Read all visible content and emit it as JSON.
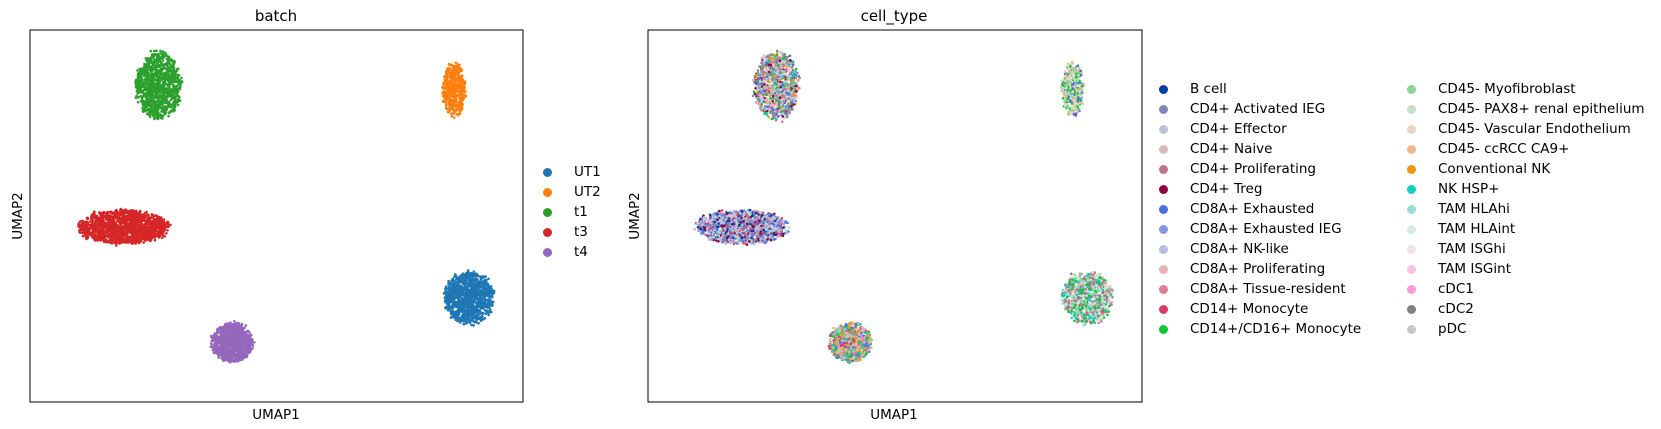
{
  "chart_data": [
    {
      "type": "scatter",
      "title": "batch",
      "xlabel": "UMAP1",
      "ylabel": "UMAP2",
      "grid": false,
      "legend_placement": "right",
      "legend": [
        {
          "label": "UT1",
          "color": "#1f77b4"
        },
        {
          "label": "UT2",
          "color": "#ff7f0e"
        },
        {
          "label": "t1",
          "color": "#2ca02c"
        },
        {
          "label": "t3",
          "color": "#d62728"
        },
        {
          "label": "t4",
          "color": "#9467bd"
        }
      ],
      "xlim": [
        0,
        10
      ],
      "ylim": [
        0,
        10
      ],
      "clusters": [
        {
          "category": "t1",
          "center": [
            2.6,
            8.5
          ],
          "spread": [
            0.9,
            1.8
          ],
          "n": 1100
        },
        {
          "category": "UT2",
          "center": [
            8.6,
            8.4
          ],
          "spread": [
            0.45,
            1.45
          ],
          "n": 450
        },
        {
          "category": "t3",
          "center": [
            1.9,
            4.7
          ],
          "spread": [
            1.8,
            0.9
          ],
          "n": 1500
        },
        {
          "category": "UT1",
          "center": [
            8.9,
            2.8
          ],
          "spread": [
            1.0,
            1.4
          ],
          "n": 1100
        },
        {
          "category": "t4",
          "center": [
            4.1,
            1.6
          ],
          "spread": [
            0.85,
            1.05
          ],
          "n": 900
        }
      ]
    },
    {
      "type": "scatter",
      "title": "cell_type",
      "xlabel": "UMAP1",
      "ylabel": "UMAP2",
      "grid": false,
      "legend_placement": "right",
      "legend": [
        {
          "label": "B cell",
          "color": "#023fa5"
        },
        {
          "label": "CD4+ Activated IEG",
          "color": "#7d87b9"
        },
        {
          "label": "CD4+ Effector",
          "color": "#bec1d4"
        },
        {
          "label": "CD4+ Naive",
          "color": "#d6bcc0"
        },
        {
          "label": "CD4+ Proliferating",
          "color": "#bb7784"
        },
        {
          "label": "CD4+ Treg",
          "color": "#8e063b"
        },
        {
          "label": "CD8A+ Exhausted",
          "color": "#4a6fe3"
        },
        {
          "label": "CD8A+ Exhausted IEG",
          "color": "#8595e1"
        },
        {
          "label": "CD8A+ NK-like",
          "color": "#b5bbe3"
        },
        {
          "label": "CD8A+ Proliferating",
          "color": "#e6afb9"
        },
        {
          "label": "CD8A+ Tissue-resident",
          "color": "#e07b91"
        },
        {
          "label": "CD14+ Monocyte",
          "color": "#d33f6a"
        },
        {
          "label": "CD14+/CD16+ Monocyte",
          "color": "#11c638"
        },
        {
          "label": "CD45- Myofibroblast",
          "color": "#8dd593"
        },
        {
          "label": "CD45- PAX8+ renal epithelium",
          "color": "#c6dec7"
        },
        {
          "label": "CD45- Vascular Endothelium",
          "color": "#ead3c6"
        },
        {
          "label": "CD45- ccRCC CA9+",
          "color": "#f0b98d"
        },
        {
          "label": "Conventional NK",
          "color": "#ef9708"
        },
        {
          "label": "NK HSP+",
          "color": "#0fcfc0"
        },
        {
          "label": "TAM HLAhi",
          "color": "#9cded6"
        },
        {
          "label": "TAM HLAint",
          "color": "#d5eae7"
        },
        {
          "label": "TAM ISGhi",
          "color": "#f3e1eb"
        },
        {
          "label": "TAM ISGint",
          "color": "#f6c4e1"
        },
        {
          "label": "cDC1",
          "color": "#f79cd4"
        },
        {
          "label": "cDC2",
          "color": "#7f7f7f"
        },
        {
          "label": "pDC",
          "color": "#c7c7c7"
        }
      ],
      "xlim": [
        0,
        10
      ],
      "ylim": [
        0,
        10
      ],
      "clusters": [
        {
          "center": [
            2.6,
            8.5
          ],
          "spread": [
            0.9,
            1.8
          ],
          "n": 1000,
          "mix": [
            "CD4+ Activated IEG",
            "CD4+ Effector",
            "CD4+ Naive",
            "CD4+ Proliferating",
            "CD4+ Treg",
            "CD8A+ Exhausted",
            "CD8A+ NK-like",
            "CD8A+ Tissue-resident",
            "CD14+/CD16+ Monocyte",
            "Conventional NK",
            "NK HSP+",
            "TAM ISGint",
            "cDC2",
            "pDC"
          ]
        },
        {
          "center": [
            8.6,
            8.4
          ],
          "spread": [
            0.45,
            1.45
          ],
          "n": 400,
          "mix": [
            "CD45- ccRCC CA9+",
            "CD45- Vascular Endothelium",
            "CD45- Myofibroblast",
            "CD14+/CD16+ Monocyte",
            "CD8A+ Exhausted",
            "CD45- PAX8+ renal epithelium"
          ]
        },
        {
          "center": [
            1.9,
            4.7
          ],
          "spread": [
            1.8,
            0.9
          ],
          "n": 1400,
          "mix": [
            "CD8A+ Exhausted",
            "CD8A+ Exhausted IEG",
            "CD8A+ NK-like",
            "B cell",
            "CD4+ Activated IEG",
            "CD4+ Effector",
            "CD4+ Treg",
            "CD8A+ Proliferating",
            "CD14+ Monocyte",
            "TAM HLAhi"
          ]
        },
        {
          "center": [
            8.9,
            2.8
          ],
          "spread": [
            1.0,
            1.4
          ],
          "n": 1000,
          "mix": [
            "CD14+/CD16+ Monocyte",
            "CD45- Myofibroblast",
            "TAM HLAhi",
            "TAM HLAint",
            "CD8A+ Tissue-resident",
            "CD45- Vascular Endothelium",
            "CD4+ Proliferating",
            "cDC2",
            "NK HSP+"
          ]
        },
        {
          "center": [
            4.1,
            1.6
          ],
          "spread": [
            0.85,
            1.05
          ],
          "n": 850,
          "mix": [
            "Conventional NK",
            "CD45- ccRCC CA9+",
            "CD14+ Monocyte",
            "CD14+/CD16+ Monocyte",
            "CD8A+ Exhausted",
            "CD8A+ Tissue-resident",
            "CD45- Myofibroblast",
            "NK HSP+",
            "cDC1",
            "CD4+ Effector"
          ]
        }
      ]
    }
  ]
}
